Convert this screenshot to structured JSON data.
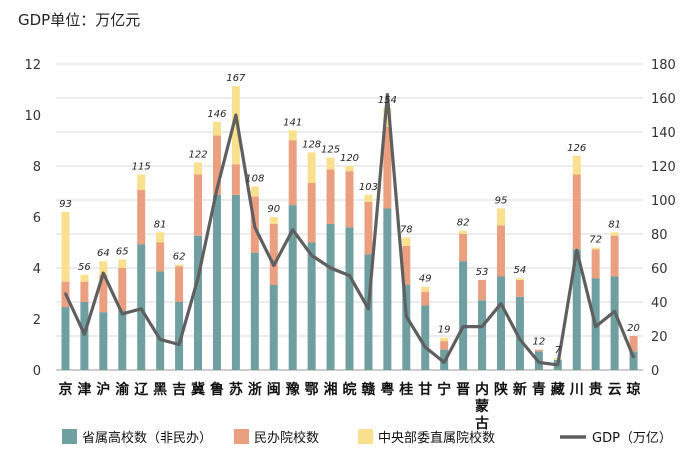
{
  "chart_data": {
    "type": "bar",
    "stacked": true,
    "title": "GDP单位：万亿元",
    "categories": [
      "京",
      "津",
      "沪",
      "渝",
      "辽",
      "黑",
      "吉",
      "冀",
      "鲁",
      "苏",
      "浙",
      "闽",
      "豫",
      "鄂",
      "湘",
      "皖",
      "赣",
      "粤",
      "桂",
      "甘",
      "宁",
      "晋",
      "内蒙古",
      "陕",
      "新",
      "青",
      "藏",
      "川",
      "贵",
      "云",
      "琼"
    ],
    "series": [
      {
        "name": "省属高校数（非民办）",
        "color": "#6f9fa0",
        "values": [
          37,
          40,
          34,
          35,
          74,
          58,
          40,
          79,
          103,
          103,
          69,
          50,
          97,
          75,
          86,
          84,
          68,
          95,
          50,
          38,
          12,
          64,
          41,
          55,
          43,
          11,
          6,
          71,
          54,
          55,
          11
        ]
      },
      {
        "name": "民办院校数",
        "color": "#eaa080",
        "values": [
          15,
          12,
          22,
          25,
          32,
          17,
          21,
          36,
          35,
          18,
          33,
          36,
          38,
          35,
          32,
          33,
          31,
          48,
          23,
          8,
          5,
          16,
          12,
          30,
          10,
          1,
          0,
          44,
          17,
          24,
          9
        ]
      },
      {
        "name": "中央部委直属院校数",
        "color": "#f8e08e",
        "values": [
          41,
          4,
          8,
          5,
          9,
          6,
          1,
          7,
          8,
          46,
          6,
          4,
          6,
          18,
          7,
          3,
          4,
          11,
          5,
          3,
          2,
          2,
          0,
          10,
          1,
          0,
          1,
          11,
          1,
          2,
          0
        ]
      },
      {
        "name": "GDP（万亿）",
        "type": "line",
        "color": "#5f5f5f",
        "axis": "y_left",
        "values": [
          3.0,
          1.4,
          3.8,
          2.2,
          2.4,
          1.2,
          1.0,
          3.6,
          7.1,
          10.0,
          5.6,
          4.1,
          5.5,
          4.5,
          4.0,
          3.7,
          2.4,
          10.8,
          2.1,
          0.9,
          0.3,
          1.7,
          1.7,
          2.6,
          1.2,
          0.3,
          0.2,
          4.7,
          1.7,
          2.3,
          0.5
        ]
      }
    ],
    "totals": [
      93,
      56,
      64,
      65,
      115,
      81,
      62,
      122,
      146,
      167,
      108,
      90,
      141,
      128,
      125,
      120,
      103,
      154,
      78,
      49,
      19,
      82,
      53,
      95,
      54,
      12,
      7,
      126,
      72,
      81,
      20
    ],
    "y_left": {
      "min": 0,
      "max": 12,
      "ticks": [
        "0",
        "2",
        "4",
        "6",
        "8",
        "10",
        "12"
      ]
    },
    "y_right": {
      "min": 0,
      "max": 180,
      "ticks": [
        "0",
        "20",
        "40",
        "60",
        "80",
        "100",
        "120",
        "140",
        "160",
        "180"
      ]
    },
    "grid": true,
    "legend_position": "bottom"
  }
}
